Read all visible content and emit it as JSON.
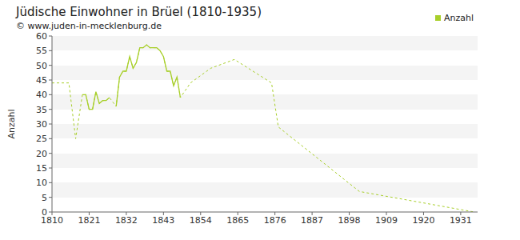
{
  "chart_data": {
    "type": "line",
    "title": "Jüdische Einwohner in Brüel (1810-1935)",
    "subtitle": "© www.juden-in-mecklenburg.de",
    "y_label": "Anzahl",
    "x": [
      1810,
      1815,
      1817,
      1819,
      1820,
      1821,
      1822,
      1823,
      1824,
      1825,
      1826,
      1827,
      1829,
      1830,
      1831,
      1832,
      1833,
      1834,
      1835,
      1836,
      1837,
      1838,
      1839,
      1840,
      1841,
      1842,
      1843,
      1844,
      1845,
      1846,
      1847,
      1848,
      1851,
      1857,
      1864,
      1875,
      1877,
      1901,
      1935
    ],
    "series": [
      {
        "name": "Anzahl",
        "color": "#a8cf2a",
        "values": [
          44,
          44,
          25,
          40,
          40,
          35,
          35,
          41,
          37,
          38,
          38,
          39,
          36,
          46,
          48,
          48,
          53,
          49,
          51,
          56,
          56,
          57,
          56,
          56,
          56,
          55,
          53,
          48,
          48,
          43,
          46,
          39,
          44,
          49,
          52,
          44,
          29,
          7,
          0
        ]
      }
    ],
    "xlim": [
      1810,
      1936
    ],
    "xticks": [
      1810,
      1821,
      1832,
      1843,
      1854,
      1865,
      1876,
      1887,
      1898,
      1909,
      1920,
      1931
    ],
    "ylim": [
      0,
      60
    ],
    "yticks": [
      0,
      5,
      10,
      15,
      20,
      25,
      30,
      35,
      40,
      45,
      50,
      55,
      60
    ],
    "grid": true,
    "legend": "top right"
  }
}
